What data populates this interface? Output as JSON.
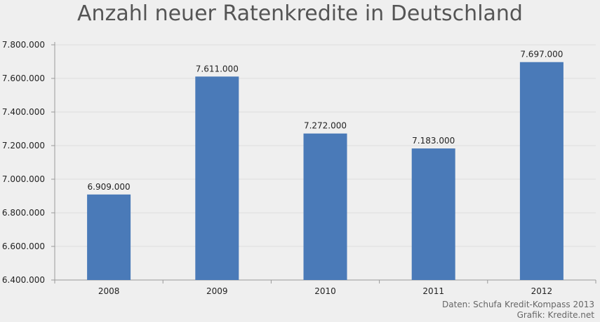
{
  "chart_data": {
    "type": "bar",
    "title": "Anzahl neuer Ratenkredite in Deutschland",
    "categories": [
      "2008",
      "2009",
      "2010",
      "2011",
      "2012"
    ],
    "values": [
      6909000,
      7611000,
      7272000,
      7183000,
      7697000
    ],
    "value_labels": [
      "6.909.000",
      "7.611.000",
      "7.272.000",
      "7.183.000",
      "7.697.000"
    ],
    "ylim": [
      6400000,
      7800000
    ],
    "yticks": [
      6400000,
      6600000,
      6800000,
      7000000,
      7200000,
      7400000,
      7600000,
      7800000
    ],
    "ytick_labels": [
      "6.400.000",
      "6.600.000",
      "6.800.000",
      "7.000.000",
      "7.200.000",
      "7.400.000",
      "7.600.000",
      "7.800.000"
    ],
    "xlabel": "",
    "ylabel": "",
    "grid": true,
    "legend": "none",
    "bar_color": "#4a7ab8"
  },
  "credits": {
    "source": "Daten: Schufa Kredit-Kompass 2013",
    "graphic": "Grafik: Kredite.net"
  }
}
